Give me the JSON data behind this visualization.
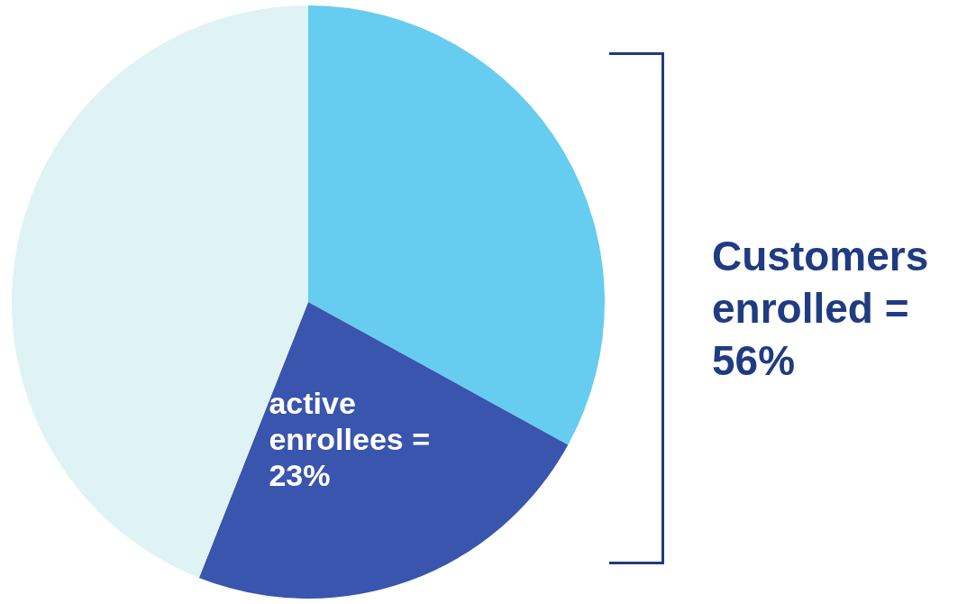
{
  "chart_data": {
    "type": "pie",
    "categories": [
      null,
      null,
      null
    ],
    "values": [
      33,
      23,
      44
    ],
    "colors": [
      "#66cdf0",
      "#3a55ad",
      "#dff3f4"
    ],
    "value_labels": [
      null,
      "active enrollees = 23%",
      null
    ],
    "annotations": [
      "Customers enrolled = 56%"
    ],
    "legend": false
  }
}
